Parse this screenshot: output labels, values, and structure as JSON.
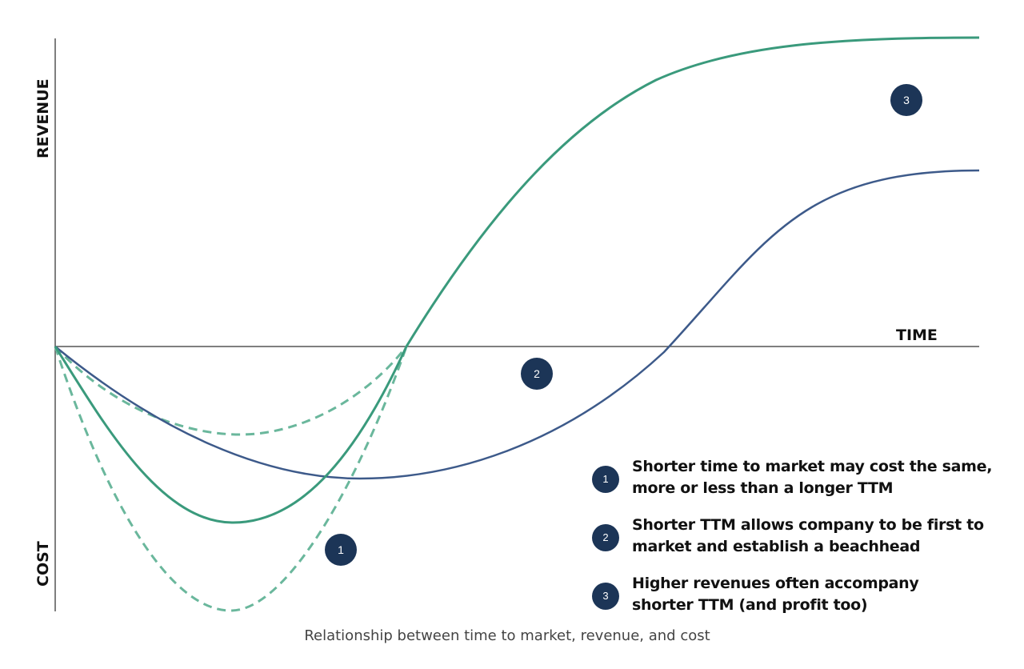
{
  "axes": {
    "y_top_label": "REVENUE",
    "y_bottom_label": "COST",
    "x_label": "TIME"
  },
  "markers": [
    {
      "number": "1"
    },
    {
      "number": "2"
    },
    {
      "number": "3"
    }
  ],
  "legend": [
    {
      "number": "1",
      "lines": [
        "Shorter time to market may cost the same,",
        "more or less than a longer TTM"
      ]
    },
    {
      "number": "2",
      "lines": [
        "Shorter TTM allows company to be first to",
        "market and establish a beachhead"
      ]
    },
    {
      "number": "3",
      "lines": [
        "Higher revenues often accompany",
        "shorter TTM (and profit too)"
      ]
    }
  ],
  "caption": "Relationship between time to market, revenue, and cost",
  "colors": {
    "short_ttm_curve": "#3a9a7c",
    "long_ttm_curve": "#3d5a8a",
    "alternative_cost_dashed": "#6ab79c",
    "marker_fill": "#1c3557",
    "axis": "#555555"
  }
}
